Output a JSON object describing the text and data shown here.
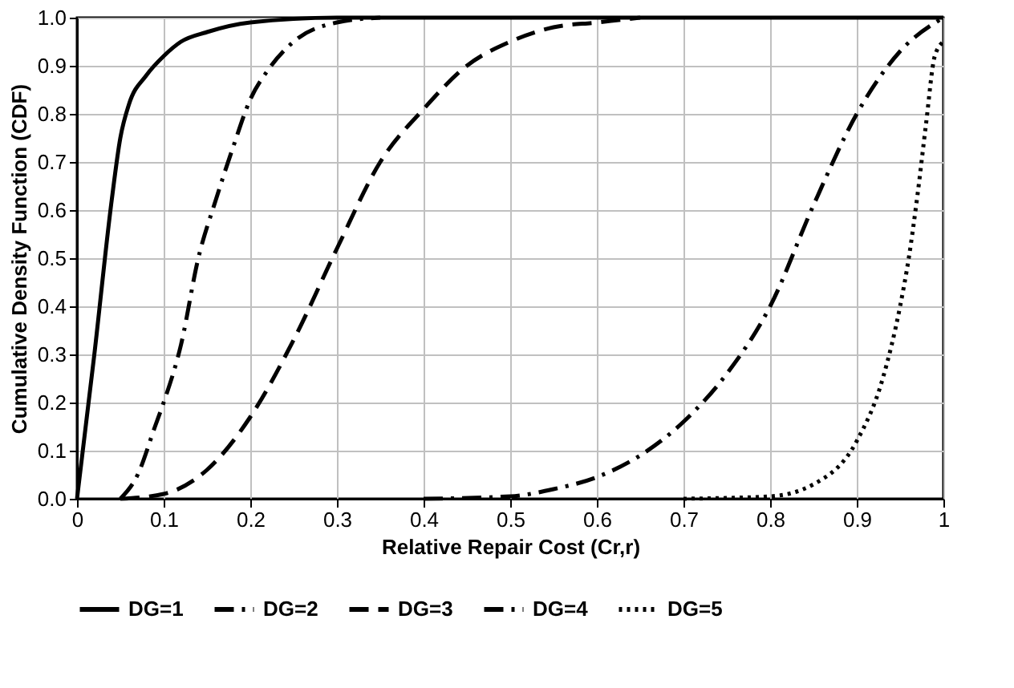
{
  "chart_data": {
    "type": "line",
    "xlabel": "Relative Repair Cost (Cr,r)",
    "ylabel": "Cumulative Density Function (CDF)",
    "xlim": [
      0,
      1
    ],
    "xticks": [
      0,
      0.1,
      0.2,
      0.3,
      0.4,
      0.5,
      0.6,
      0.7,
      0.8,
      0.9,
      1
    ],
    "ylim": [
      0,
      1
    ],
    "yticks": [
      {
        "value": 0,
        "label": "0.0"
      },
      0.1,
      0.2,
      0.3,
      0.4,
      0.5,
      0.6,
      0.7,
      0.8,
      0.9,
      {
        "value": 1,
        "label": "1.0"
      }
    ],
    "grid": true,
    "legend": "bottom",
    "marker": "none",
    "series": [
      {
        "name": "DG=1",
        "color": "#000000",
        "line_style": "solid",
        "x": [
          0,
          0.02,
          0.04,
          0.05,
          0.06,
          0.08,
          0.1,
          0.12,
          0.15,
          0.2,
          0.3,
          1
        ],
        "values": [
          0,
          0.3,
          0.62,
          0.75,
          0.82,
          0.88,
          0.92,
          0.95,
          0.97,
          0.99,
          1,
          1
        ]
      },
      {
        "name": "DG=2",
        "color": "#000000",
        "line_style": "dashdot",
        "x": [
          0.05,
          0.07,
          0.09,
          0.1,
          0.12,
          0.14,
          0.16,
          0.18,
          0.2,
          0.22,
          0.25,
          0.3,
          0.35
        ],
        "values": [
          0,
          0.05,
          0.15,
          0.2,
          0.32,
          0.5,
          0.62,
          0.73,
          0.83,
          0.89,
          0.95,
          0.99,
          1
        ]
      },
      {
        "name": "DG=3",
        "color": "#000000",
        "line_style": "dashed",
        "x": [
          0.05,
          0.1,
          0.15,
          0.2,
          0.25,
          0.3,
          0.35,
          0.4,
          0.45,
          0.5,
          0.55,
          0.6,
          0.65
        ],
        "values": [
          0,
          0.01,
          0.06,
          0.17,
          0.33,
          0.52,
          0.7,
          0.81,
          0.9,
          0.95,
          0.98,
          0.99,
          1
        ]
      },
      {
        "name": "DG=4",
        "color": "#000000",
        "line_style": "dashdot",
        "x": [
          0.4,
          0.5,
          0.55,
          0.6,
          0.65,
          0.7,
          0.75,
          0.8,
          0.85,
          0.9,
          0.95,
          1
        ],
        "values": [
          0,
          0.005,
          0.02,
          0.045,
          0.09,
          0.16,
          0.26,
          0.4,
          0.61,
          0.8,
          0.93,
          1
        ]
      },
      {
        "name": "DG=5",
        "color": "#000000",
        "line_style": "dotted",
        "x": [
          0.7,
          0.8,
          0.85,
          0.9,
          0.93,
          0.95,
          0.96,
          0.97,
          0.98,
          0.99,
          1
        ],
        "values": [
          0,
          0.005,
          0.03,
          0.12,
          0.25,
          0.4,
          0.5,
          0.63,
          0.78,
          0.92,
          0.95
        ]
      }
    ]
  }
}
